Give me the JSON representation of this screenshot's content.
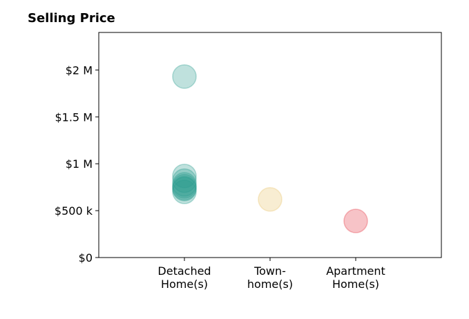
{
  "chart_data": {
    "type": "scatter",
    "title": "Selling Price",
    "xlabel": "",
    "ylabel": "",
    "categories": [
      [
        "Detached",
        "Home(s)"
      ],
      [
        "Town-",
        "home(s)"
      ],
      [
        "Apartment",
        "Home(s)"
      ]
    ],
    "xlim": [
      -1,
      3
    ],
    "ylim": [
      0,
      2400000
    ],
    "yticks": [
      0,
      500000,
      1000000,
      1500000,
      2000000
    ],
    "ytick_labels": [
      "$0",
      "$500 k",
      "$1 M",
      "$1.5 M",
      "$2 M"
    ],
    "grid": false,
    "series": [
      {
        "category": "Detached Home(s)",
        "color": "#2a9d8f",
        "values": [
          1930000,
          870000,
          820000,
          780000,
          760000,
          740000,
          730000,
          700000
        ]
      },
      {
        "category": "Town-home(s)",
        "color": "#e9c46a",
        "values": [
          620000
        ]
      },
      {
        "category": "Apartment Home(s)",
        "color": "#e63946",
        "values": [
          390000
        ]
      }
    ]
  }
}
